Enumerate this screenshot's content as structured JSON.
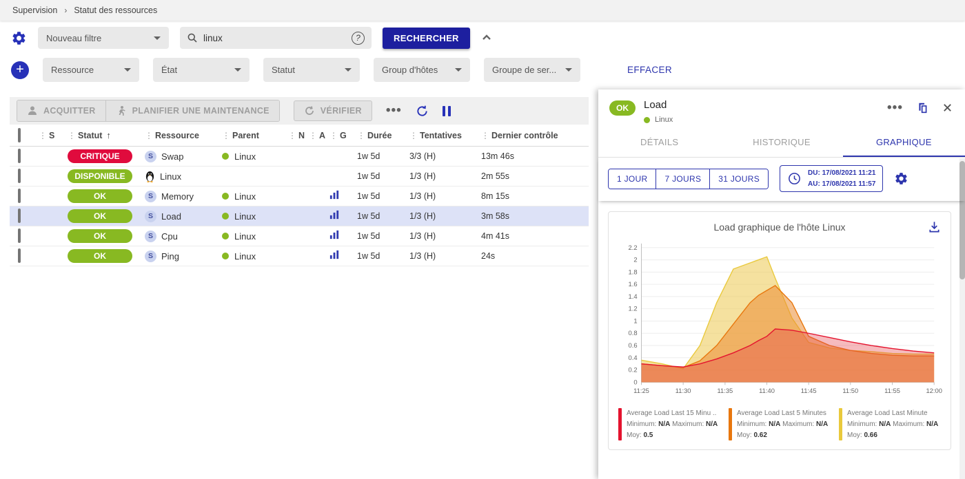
{
  "breadcrumb": {
    "items": [
      "Supervision",
      "Statut des ressources"
    ]
  },
  "filter_bar": {
    "filter_select": "Nouveau filtre",
    "search_value": "linux",
    "search_button": "RECHERCHER"
  },
  "criteria_bar": {
    "dropdowns": [
      "Ressource",
      "État",
      "Statut",
      "Group d'hôtes",
      "Groupe de ser..."
    ],
    "clear_label": "EFFACER"
  },
  "toolbar": {
    "acknowledge": "ACQUITTER",
    "maintenance": "PLANIFIER UNE MAINTENANCE",
    "check": "VÉRIFIER"
  },
  "colors": {
    "accent": "#2d35ad",
    "primary_button": "#1d1f9f",
    "ok": "#88b922",
    "critical": "#e00b3d",
    "selected_row": "#dde2f7"
  },
  "table": {
    "columns": [
      {
        "label": "S"
      },
      {
        "label": "Statut",
        "sort": "asc"
      },
      {
        "label": "Ressource"
      },
      {
        "label": "Parent"
      },
      {
        "label": "N"
      },
      {
        "label": "A"
      },
      {
        "label": "G"
      },
      {
        "label": "Durée"
      },
      {
        "label": "Tentatives"
      },
      {
        "label": "Dernier contrôle"
      }
    ],
    "rows": [
      {
        "status": "CRITIQUE",
        "status_color": "#e00b3d",
        "kind": "service",
        "resource": "Swap",
        "parent": "Linux",
        "graph": false,
        "duration": "1w 5d",
        "tries": "3/3 (H)",
        "last_check": "13m 46s",
        "selected": false
      },
      {
        "status": "DISPONIBLE",
        "status_color": "#88b922",
        "kind": "host",
        "resource": "Linux",
        "parent": "",
        "graph": false,
        "duration": "1w 5d",
        "tries": "1/3 (H)",
        "last_check": "2m 55s",
        "selected": false
      },
      {
        "status": "OK",
        "status_color": "#88b922",
        "kind": "service",
        "resource": "Memory",
        "parent": "Linux",
        "graph": true,
        "duration": "1w 5d",
        "tries": "1/3 (H)",
        "last_check": "8m 15s",
        "selected": false
      },
      {
        "status": "OK",
        "status_color": "#88b922",
        "kind": "service",
        "resource": "Load",
        "parent": "Linux",
        "graph": true,
        "duration": "1w 5d",
        "tries": "1/3 (H)",
        "last_check": "3m 58s",
        "selected": true
      },
      {
        "status": "OK",
        "status_color": "#88b922",
        "kind": "service",
        "resource": "Cpu",
        "parent": "Linux",
        "graph": true,
        "duration": "1w 5d",
        "tries": "1/3 (H)",
        "last_check": "4m 41s",
        "selected": false
      },
      {
        "status": "OK",
        "status_color": "#88b922",
        "kind": "service",
        "resource": "Ping",
        "parent": "Linux",
        "graph": true,
        "duration": "1w 5d",
        "tries": "1/3 (H)",
        "last_check": "24s",
        "selected": false
      }
    ]
  },
  "panel": {
    "status": "OK",
    "title": "Load",
    "subtitle": "Linux",
    "tabs": [
      {
        "label": "DÉTAILS",
        "active": false
      },
      {
        "label": "HISTORIQUE",
        "active": false
      },
      {
        "label": "GRAPHIQUE",
        "active": true
      }
    ],
    "periods": [
      "1 JOUR",
      "7 JOURS",
      "31 JOURS"
    ],
    "date_from": "DU: 17/08/2021 11:21",
    "date_to": "AU: 17/08/2021 11:57"
  },
  "chart_data": {
    "type": "area",
    "title": "Load graphique de l'hôte Linux",
    "x_ticks": [
      "11:25",
      "11:30",
      "11:35",
      "11:40",
      "11:45",
      "11:50",
      "11:55",
      "12:00"
    ],
    "x_range_minutes": [
      0,
      35
    ],
    "ylim": [
      0,
      2.2
    ],
    "y_tick_step": 0.2,
    "grid": true,
    "legend_labels": {
      "minimum": "Minimum:",
      "maximum": "Maximum:",
      "avg": "Moy:"
    },
    "series": [
      {
        "name": "Average Load Last 15 Minu ..",
        "color": "#e4132e",
        "fill": "rgba(228,60,70,0.35)",
        "min": "N/A",
        "max": "N/A",
        "avg": "0.5",
        "x": [
          0,
          2.5,
          5,
          7,
          9,
          11,
          13,
          14,
          15,
          16,
          18,
          20,
          22.5,
          25,
          27.5,
          30,
          32.5,
          35
        ],
        "values": [
          0.3,
          0.27,
          0.25,
          0.3,
          0.38,
          0.48,
          0.6,
          0.68,
          0.75,
          0.87,
          0.85,
          0.8,
          0.73,
          0.66,
          0.6,
          0.55,
          0.51,
          0.48
        ]
      },
      {
        "name": "Average Load Last 5 Minutes",
        "color": "#e8770e",
        "fill": "rgba(235,140,51,0.55)",
        "min": "N/A",
        "max": "N/A",
        "avg": "0.62",
        "x": [
          0,
          2.5,
          5,
          7,
          9,
          11,
          13,
          14,
          15,
          16,
          18,
          20,
          22.5,
          25,
          27.5,
          30,
          32.5,
          35
        ],
        "values": [
          0.3,
          0.27,
          0.24,
          0.35,
          0.6,
          0.95,
          1.3,
          1.42,
          1.5,
          1.58,
          1.3,
          0.75,
          0.6,
          0.52,
          0.47,
          0.44,
          0.43,
          0.43
        ]
      },
      {
        "name": "Average Load Last Minute",
        "color": "#e9c93c",
        "fill": "rgba(237,201,81,0.55)",
        "min": "N/A",
        "max": "N/A",
        "avg": "0.66",
        "x": [
          0,
          2.5,
          5,
          7,
          9,
          11,
          13,
          14,
          15,
          16,
          18,
          20,
          22.5,
          25,
          27.5,
          30,
          32.5,
          35
        ],
        "values": [
          0.36,
          0.3,
          0.22,
          0.6,
          1.3,
          1.85,
          1.95,
          2.0,
          2.05,
          1.7,
          1.05,
          0.65,
          0.56,
          0.52,
          0.5,
          0.47,
          0.46,
          0.46
        ]
      }
    ]
  }
}
